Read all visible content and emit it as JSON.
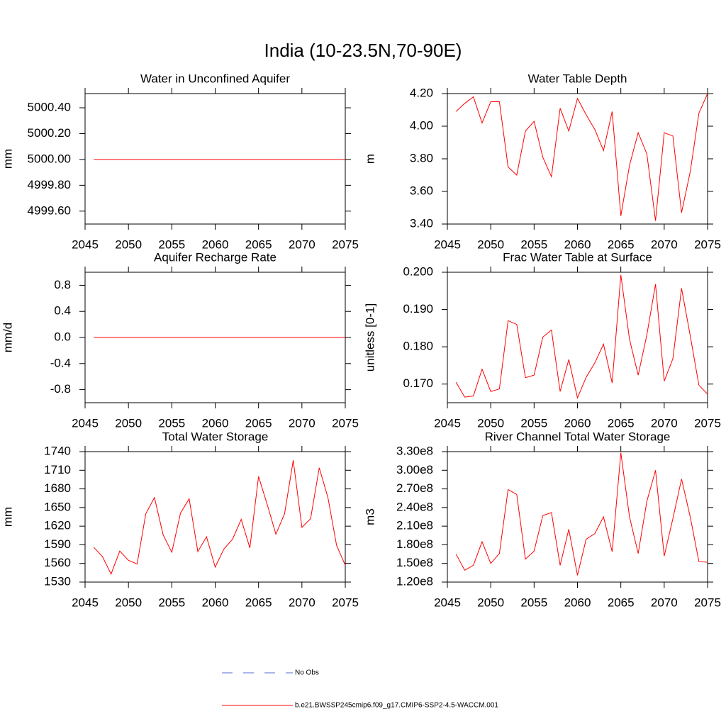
{
  "title": "India (10-23.5N,70-90E)",
  "chart_data": [
    {
      "type": "line",
      "title": "Water in Unconfined Aquifer",
      "ylabel": "mm",
      "x": [
        2046,
        2047,
        2048,
        2049,
        2050,
        2051,
        2052,
        2053,
        2054,
        2055,
        2056,
        2057,
        2058,
        2059,
        2060,
        2061,
        2062,
        2063,
        2064,
        2065,
        2066,
        2067,
        2068,
        2069,
        2070,
        2071,
        2072,
        2073,
        2074,
        2075
      ],
      "values": [
        5000,
        5000,
        5000,
        5000,
        5000,
        5000,
        5000,
        5000,
        5000,
        5000,
        5000,
        5000,
        5000,
        5000,
        5000,
        5000,
        5000,
        5000,
        5000,
        5000,
        5000,
        5000,
        5000,
        5000,
        5000,
        5000,
        5000,
        5000,
        5000,
        5000
      ],
      "color": "#ff0000",
      "xlim": [
        2045,
        2075
      ],
      "xticks": [
        2045,
        2050,
        2055,
        2060,
        2065,
        2070,
        2075
      ],
      "ylim": [
        4999.5,
        5000.51
      ],
      "yticks": [
        {
          "value": 4999.6,
          "label": "4999.60"
        },
        {
          "value": 4999.8,
          "label": "4999.80"
        },
        {
          "value": 5000,
          "label": "5000.00"
        },
        {
          "value": 5000.2,
          "label": "5000.20"
        },
        {
          "value": 5000.4,
          "label": "5000.40"
        }
      ]
    },
    {
      "type": "line",
      "title": "Water Table Depth",
      "ylabel": "m",
      "x": [
        2046,
        2047,
        2048,
        2049,
        2050,
        2051,
        2052,
        2053,
        2054,
        2055,
        2056,
        2057,
        2058,
        2059,
        2060,
        2061,
        2062,
        2063,
        2064,
        2065,
        2066,
        2067,
        2068,
        2069,
        2070,
        2071,
        2072,
        2073,
        2074,
        2075
      ],
      "values": [
        4.09,
        4.14,
        4.18,
        4.02,
        4.15,
        4.15,
        3.75,
        3.7,
        3.97,
        4.03,
        3.81,
        3.69,
        4.11,
        3.97,
        4.17,
        4.07,
        3.98,
        3.85,
        4.09,
        3.45,
        3.76,
        3.96,
        3.83,
        3.42,
        3.96,
        3.94,
        3.47,
        3.72,
        4.08,
        4.2
      ],
      "color": "#ff0000",
      "xlim": [
        2045,
        2075
      ],
      "xticks": [
        2045,
        2050,
        2055,
        2060,
        2065,
        2070,
        2075
      ],
      "ylim": [
        3.4,
        4.2
      ],
      "yticks": [
        {
          "value": 3.4,
          "label": "3.40"
        },
        {
          "value": 3.6,
          "label": "3.60"
        },
        {
          "value": 3.8,
          "label": "3.80"
        },
        {
          "value": 4.0,
          "label": "4.00"
        },
        {
          "value": 4.2,
          "label": "4.20"
        }
      ]
    },
    {
      "type": "line",
      "title": "Aquifer Recharge Rate",
      "ylabel": "mm/d",
      "x": [
        2046,
        2047,
        2048,
        2049,
        2050,
        2051,
        2052,
        2053,
        2054,
        2055,
        2056,
        2057,
        2058,
        2059,
        2060,
        2061,
        2062,
        2063,
        2064,
        2065,
        2066,
        2067,
        2068,
        2069,
        2070,
        2071,
        2072,
        2073,
        2074,
        2075
      ],
      "values": [
        0,
        0,
        0,
        0,
        0,
        0,
        0,
        0,
        0,
        0,
        0,
        0,
        0,
        0,
        0,
        0,
        0,
        0,
        0,
        0,
        0,
        0,
        0,
        0,
        0,
        0,
        0,
        0,
        0,
        0
      ],
      "color": "#ff0000",
      "xlim": [
        2045,
        2075
      ],
      "xticks": [
        2045,
        2050,
        2055,
        2060,
        2065,
        2070,
        2075
      ],
      "ylim": [
        -1.0,
        1.0
      ],
      "yticks": [
        -0.8,
        -0.4,
        {
          "value": 0,
          "label": "0.0"
        },
        0.4,
        0.8
      ]
    },
    {
      "type": "line",
      "title": "Frac Water Table at Surface",
      "ylabel": "unitless [0-1]",
      "x": [
        2046,
        2047,
        2048,
        2049,
        2050,
        2051,
        2052,
        2053,
        2054,
        2055,
        2056,
        2057,
        2058,
        2059,
        2060,
        2061,
        2062,
        2063,
        2064,
        2065,
        2066,
        2067,
        2068,
        2069,
        2070,
        2071,
        2072,
        2073,
        2074,
        2075
      ],
      "values": [
        0.1705,
        0.1665,
        0.1668,
        0.174,
        0.168,
        0.1687,
        0.187,
        0.186,
        0.1717,
        0.1724,
        0.1826,
        0.1845,
        0.168,
        0.1766,
        0.1663,
        0.1718,
        0.1757,
        0.1807,
        0.1703,
        0.1993,
        0.182,
        0.1724,
        0.1832,
        0.1968,
        0.1708,
        0.1768,
        0.1957,
        0.183,
        0.1697,
        0.1673
      ],
      "color": "#ff0000",
      "xlim": [
        2045,
        2075
      ],
      "xticks": [
        2045,
        2050,
        2055,
        2060,
        2065,
        2070,
        2075
      ],
      "ylim": [
        0.165,
        0.2
      ],
      "yticks": [
        {
          "value": 0.17,
          "label": "0.170"
        },
        {
          "value": 0.18,
          "label": "0.180"
        },
        {
          "value": 0.19,
          "label": "0.190"
        },
        {
          "value": 0.2,
          "label": "0.200"
        }
      ]
    },
    {
      "type": "line",
      "title": "Total Water Storage",
      "ylabel": "mm",
      "x": [
        2046,
        2047,
        2048,
        2049,
        2050,
        2051,
        2052,
        2053,
        2054,
        2055,
        2056,
        2057,
        2058,
        2059,
        2060,
        2061,
        2062,
        2063,
        2064,
        2065,
        2066,
        2067,
        2068,
        2069,
        2070,
        2071,
        2072,
        2073,
        2074,
        2075
      ],
      "values": [
        1586,
        1571,
        1543,
        1580,
        1565,
        1559,
        1640,
        1666,
        1606,
        1578,
        1641,
        1664,
        1579,
        1603,
        1554,
        1583,
        1599,
        1631,
        1585,
        1700,
        1655,
        1607,
        1640,
        1726,
        1618,
        1632,
        1714,
        1666,
        1589,
        1557
      ],
      "color": "#ff0000",
      "xlim": [
        2045,
        2075
      ],
      "xticks": [
        2045,
        2050,
        2055,
        2060,
        2065,
        2070,
        2075
      ],
      "ylim": [
        1530,
        1740
      ],
      "yticks": [
        1530,
        1560,
        1590,
        1620,
        1650,
        1680,
        1710,
        1740
      ]
    },
    {
      "type": "line",
      "title": "River Channel Total Water Storage",
      "ylabel": "m3",
      "x": [
        2046,
        2047,
        2048,
        2049,
        2050,
        2051,
        2052,
        2053,
        2054,
        2055,
        2056,
        2057,
        2058,
        2059,
        2060,
        2061,
        2062,
        2063,
        2064,
        2065,
        2066,
        2067,
        2068,
        2069,
        2070,
        2071,
        2072,
        2073,
        2074,
        2075
      ],
      "values": [
        165000000,
        139000000,
        147000000,
        185000000,
        150000000,
        166000000,
        269000000,
        261000000,
        157000000,
        170000000,
        227000000,
        232000000,
        147000000,
        205000000,
        131000000,
        189000000,
        198000000,
        225000000,
        169000000,
        328000000,
        225000000,
        166000000,
        250000000,
        300000000,
        162000000,
        222000000,
        286000000,
        225000000,
        153000000,
        152000000
      ],
      "color": "#ff0000",
      "xlim": [
        2045,
        2075
      ],
      "xticks": [
        2045,
        2050,
        2055,
        2060,
        2065,
        2070,
        2075
      ],
      "ylim": [
        120000000,
        330000000
      ],
      "yticks": [
        {
          "value": 120000000,
          "label": "1.20e8"
        },
        {
          "value": 150000000,
          "label": "1.50e8"
        },
        {
          "value": 180000000,
          "label": "1.80e8"
        },
        {
          "value": 210000000,
          "label": "2.10e8"
        },
        {
          "value": 240000000,
          "label": "2.40e8"
        },
        {
          "value": 270000000,
          "label": "2.70e8"
        },
        {
          "value": 300000000,
          "label": "3.00e8"
        },
        {
          "value": 330000000,
          "label": "3.30e8"
        }
      ]
    }
  ],
  "legend": [
    {
      "name": "No Obs",
      "color": "#5a6ad0",
      "dash": true
    },
    {
      "name": "b.e21.BWSSP245cmip6.f09_g17.CMIP6-SSP2-4.5-WACCM.001",
      "color": "#ff0000",
      "dash": false
    }
  ]
}
